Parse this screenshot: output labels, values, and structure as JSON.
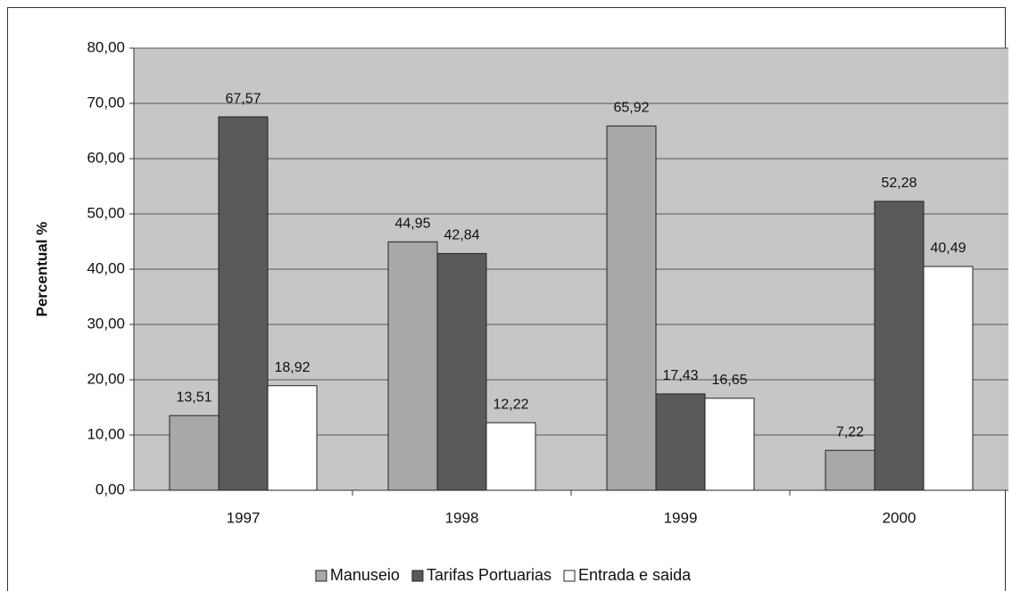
{
  "chart_data": {
    "type": "bar",
    "categories": [
      "1997",
      "1998",
      "1999",
      "2000"
    ],
    "series": [
      {
        "name": "Manuseio",
        "color": "#a8a8a8",
        "values": [
          13.51,
          44.95,
          65.92,
          7.22
        ],
        "value_labels": [
          "13,51",
          "44,95",
          "65,92",
          "7,22"
        ]
      },
      {
        "name": "Tarifas Portuarias",
        "color": "#5a5a5a",
        "values": [
          67.57,
          42.84,
          17.43,
          52.28
        ],
        "value_labels": [
          "67,57",
          "42,84",
          "17,43",
          "52,28"
        ]
      },
      {
        "name": "Entrada e saida",
        "color": "#ffffff",
        "values": [
          18.92,
          12.22,
          16.65,
          40.49
        ],
        "value_labels": [
          "18,92",
          "12,22",
          "16,65",
          "40,49"
        ]
      }
    ],
    "y_label": "Percentual %",
    "ylim": [
      0,
      80
    ],
    "yticks": [
      {
        "value": 0,
        "label": "0,00"
      },
      {
        "value": 10,
        "label": "10,00"
      },
      {
        "value": 20,
        "label": "20,00"
      },
      {
        "value": 30,
        "label": "30,00"
      },
      {
        "value": 40,
        "label": "40,00"
      },
      {
        "value": 50,
        "label": "50,00"
      },
      {
        "value": 60,
        "label": "60,00"
      },
      {
        "value": 70,
        "label": "70,00"
      },
      {
        "value": 80,
        "label": "80,00"
      }
    ],
    "grid": true,
    "legend": "bottom"
  }
}
